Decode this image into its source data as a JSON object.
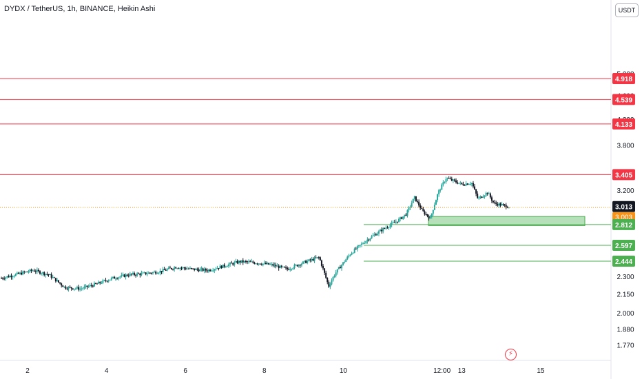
{
  "header": {
    "title": "DYDX / TetherUS, 1h, BINANCE, Heikin Ashi"
  },
  "toolbar": {
    "currency_label": "USDT"
  },
  "colors": {
    "up": "#26a69a",
    "down": "#131722",
    "resistance": "#f23645",
    "support": "#4caf50",
    "current_price": "#f7931a",
    "last_price_badge": "#131722"
  },
  "chart_data": {
    "type": "candlestick",
    "scale": "log",
    "x_ticks": [
      "2",
      "4",
      "6",
      "8",
      "10",
      "12:00",
      "13",
      "15"
    ],
    "y_ticks": [
      "5.000",
      "4.600",
      "4.200",
      "3.800",
      "3.200",
      "2.300",
      "2.150",
      "2.000",
      "1.880",
      "1.770"
    ],
    "horizontal_levels": [
      {
        "price": 4.918,
        "label": "4.918",
        "kind": "resistance"
      },
      {
        "price": 4.539,
        "label": "4.539",
        "kind": "resistance"
      },
      {
        "price": 4.133,
        "label": "4.133",
        "kind": "resistance"
      },
      {
        "price": 3.405,
        "label": "3.405",
        "kind": "resistance"
      },
      {
        "price": 2.812,
        "label": "2.812",
        "kind": "support"
      },
      {
        "price": 2.597,
        "label": "2.597",
        "kind": "support"
      },
      {
        "price": 2.444,
        "label": "2.444",
        "kind": "support"
      }
    ],
    "zone": {
      "low": 2.8,
      "high": 2.9
    },
    "last_price": {
      "value": 3.013,
      "label": "3.013"
    },
    "current_price": {
      "value": 3.003,
      "label": "3.003",
      "countdown": "42:45"
    },
    "price_path": [
      [
        0,
        2.29
      ],
      [
        2,
        2.36
      ],
      [
        3,
        2.32
      ],
      [
        4,
        2.21
      ],
      [
        5,
        2.2
      ],
      [
        6,
        2.24
      ],
      [
        7,
        2.29
      ],
      [
        8,
        2.32
      ],
      [
        9,
        2.33
      ],
      [
        10,
        2.35
      ],
      [
        11,
        2.39
      ],
      [
        12,
        2.37
      ],
      [
        13,
        2.36
      ],
      [
        14,
        2.4
      ],
      [
        15,
        2.44
      ],
      [
        16,
        2.43
      ],
      [
        17,
        2.41
      ],
      [
        18,
        2.37
      ],
      [
        19,
        2.43
      ],
      [
        20,
        2.48
      ],
      [
        20.6,
        2.22
      ],
      [
        21,
        2.33
      ],
      [
        22,
        2.52
      ],
      [
        23,
        2.65
      ],
      [
        24,
        2.76
      ],
      [
        25,
        2.86
      ],
      [
        25.5,
        2.93
      ],
      [
        26,
        3.12
      ],
      [
        26.5,
        2.96
      ],
      [
        27,
        2.88
      ],
      [
        27.5,
        3.18
      ],
      [
        28,
        3.36
      ],
      [
        29,
        3.28
      ],
      [
        29.6,
        3.3
      ],
      [
        30,
        3.1
      ],
      [
        30.6,
        3.18
      ],
      [
        31,
        3.05
      ],
      [
        31.5,
        3.03
      ],
      [
        32,
        3.01
      ]
    ]
  }
}
